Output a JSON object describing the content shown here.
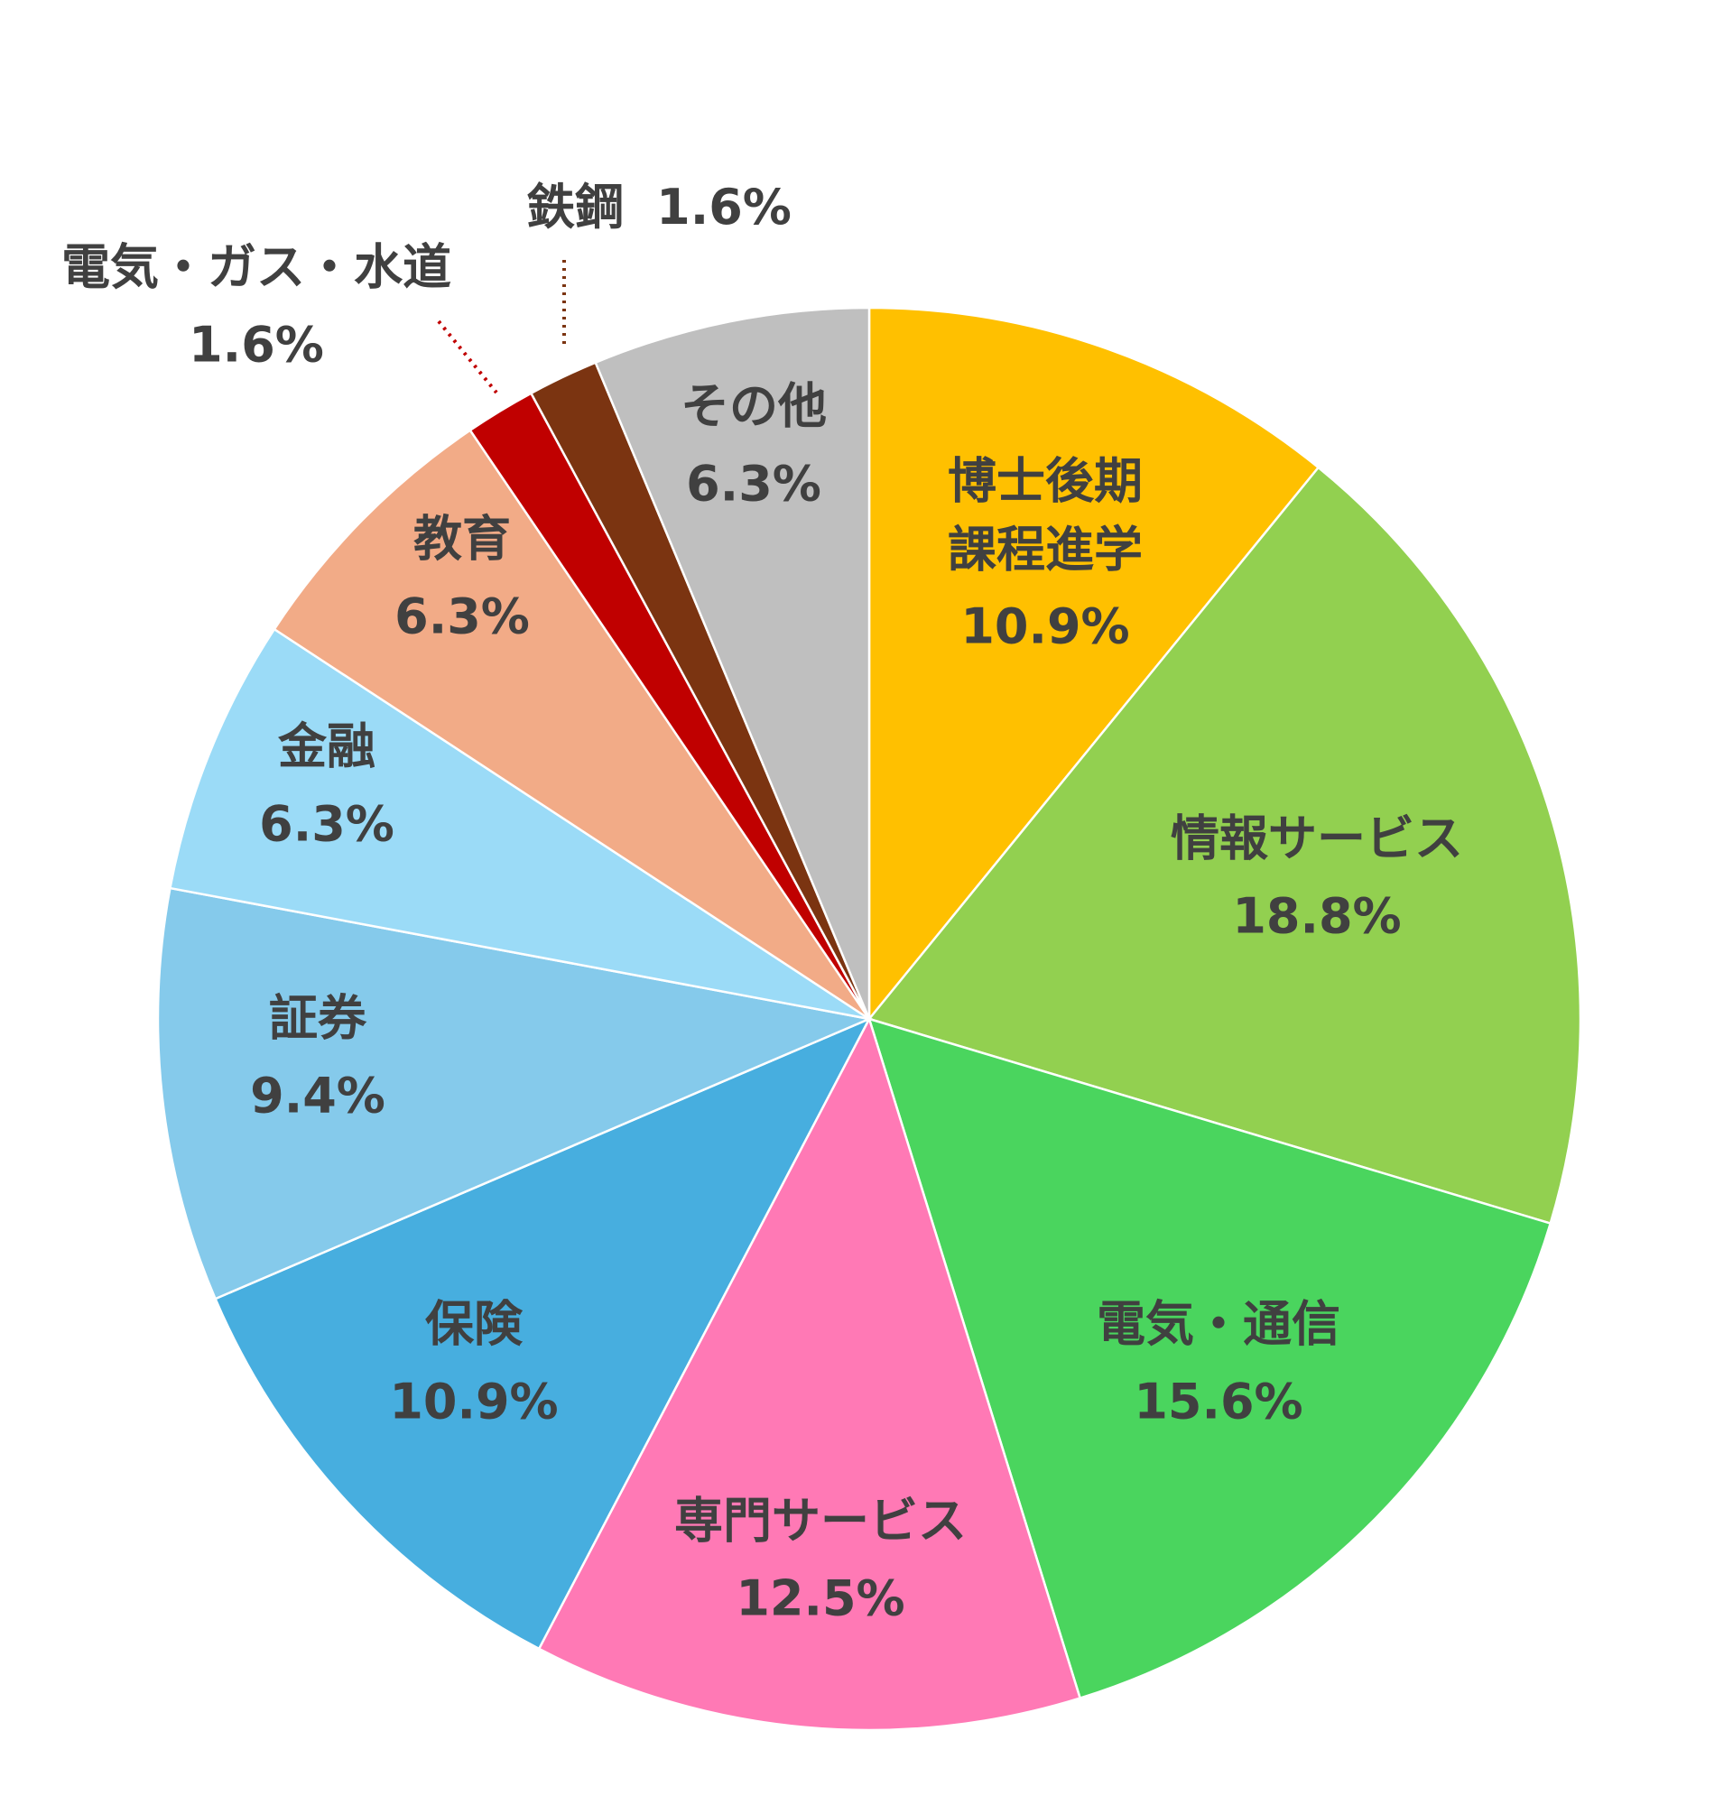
{
  "chart_data": {
    "type": "pie",
    "categories": [
      "博士後期\n課程進学",
      "情報サービス",
      "電気・通信",
      "専門サービス",
      "保険",
      "証券",
      "金融",
      "教育",
      "電気・ガス・水道",
      "鉄鋼",
      "その他"
    ],
    "values": [
      10.9,
      18.8,
      15.6,
      12.5,
      10.9,
      9.4,
      6.3,
      6.3,
      1.6,
      1.6,
      6.3
    ],
    "value_labels": [
      "10.9%",
      "18.8%",
      "15.6%",
      "12.5%",
      "10.9%",
      "9.4%",
      "6.3%",
      "6.3%",
      "1.6%",
      "1.6%",
      "6.3%"
    ],
    "colors": [
      "#FFC000",
      "#92D050",
      "#4AD55E",
      "#FF79B5",
      "#47AEDF",
      "#85CAEB",
      "#9BDBF7",
      "#F2AB87",
      "#C00000",
      "#7B3411",
      "#BFBFBF"
    ]
  }
}
